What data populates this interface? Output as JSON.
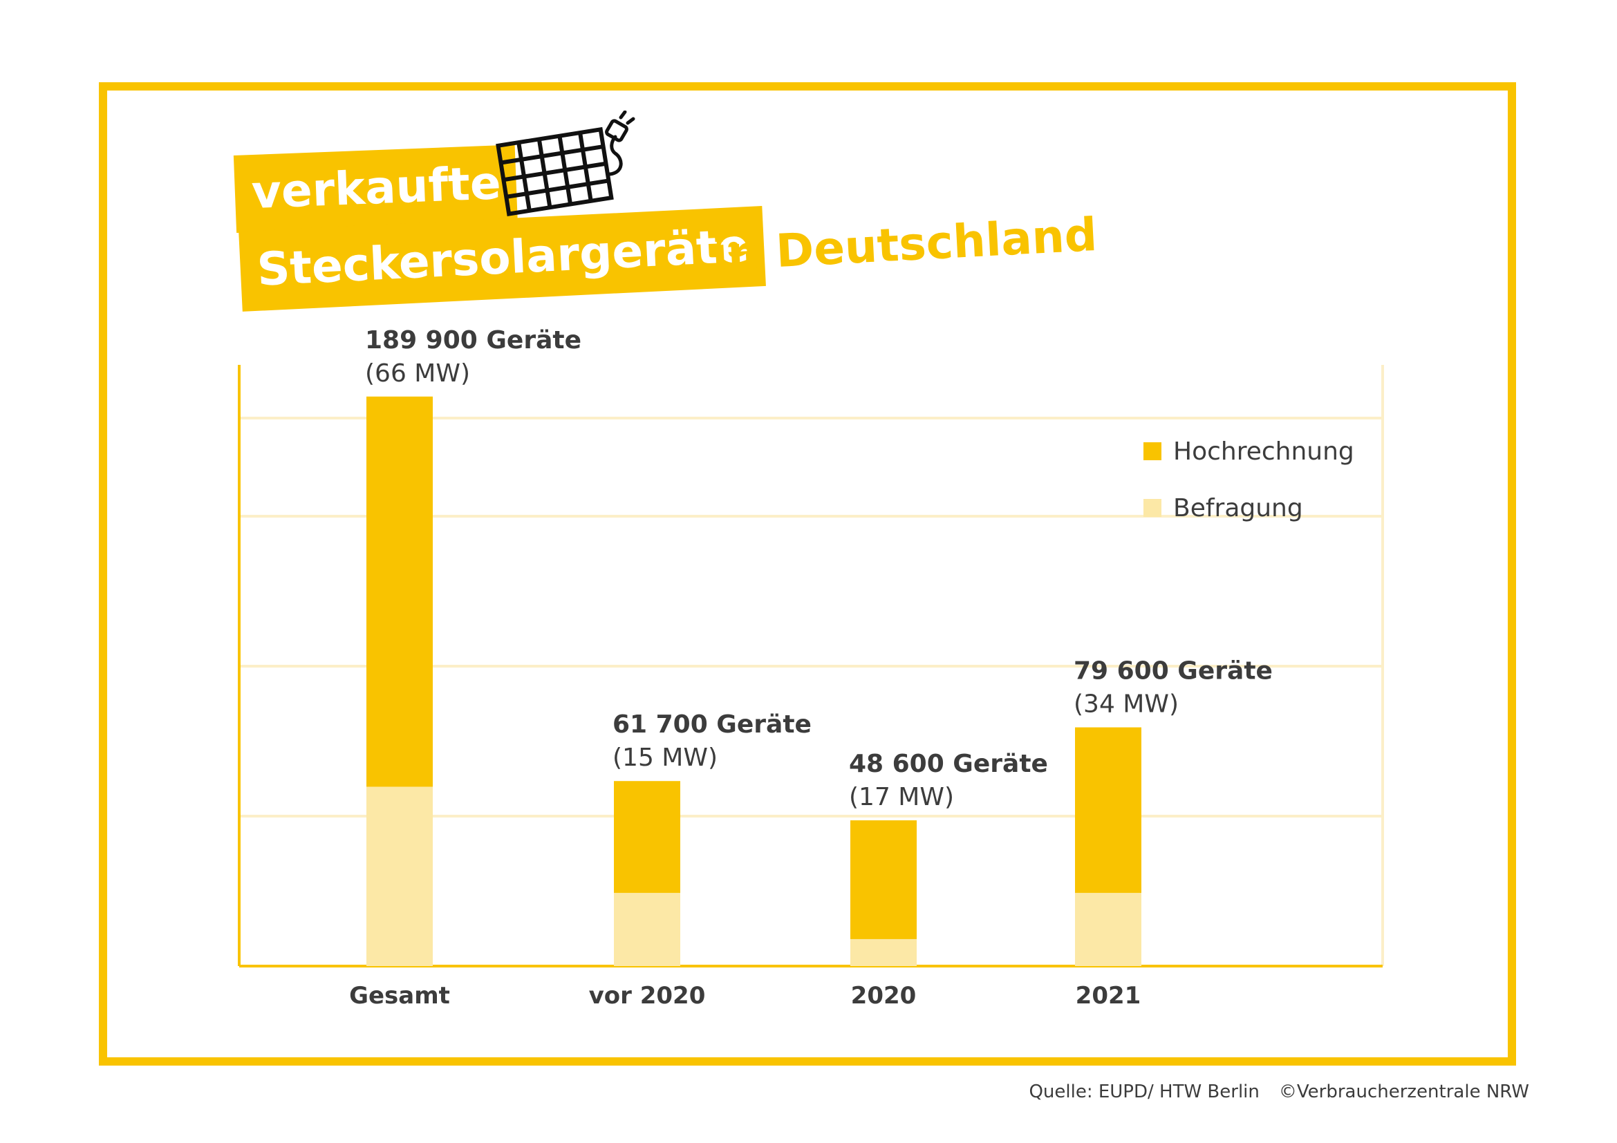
{
  "colors": {
    "accent": "#f9c300",
    "light": "#fce8a6",
    "grid": "#fcefc8",
    "text": "#3c3c3c"
  },
  "title": {
    "line1": "verkaufte",
    "line2": "Steckersolargeräte",
    "line3": "in Deutschland",
    "icon": "solar-panel-plug-icon"
  },
  "footer": {
    "source": "Quelle: EUPD/ HTW Berlin",
    "copyright": "©Verbraucherzentrale NRW"
  },
  "chart_data": {
    "type": "bar",
    "stacked": true,
    "categories": [
      "Gesamt",
      "vor 2020",
      "2020",
      "2021"
    ],
    "series": [
      {
        "name": "Befragung",
        "color": "#fce8a6",
        "values": [
          59800,
          24400,
          9000,
          24400
        ]
      },
      {
        "name": "Hochrechnung",
        "color": "#f9c300",
        "values": [
          130100,
          37300,
          39600,
          55200
        ]
      }
    ],
    "labels": [
      {
        "main": "189 900 Geräte",
        "sub": "(66 MW)"
      },
      {
        "main": "61 700 Geräte",
        "sub": "(15 MW)"
      },
      {
        "main": "48 600 Geräte",
        "sub": "(17 MW)"
      },
      {
        "main": "79 600 Geräte",
        "sub": "(34 MW)"
      }
    ],
    "legend": [
      "Hochrechnung",
      "Befragung"
    ],
    "legend_position": "top-right",
    "ylim": [
      0,
      200000
    ],
    "grid": true
  }
}
